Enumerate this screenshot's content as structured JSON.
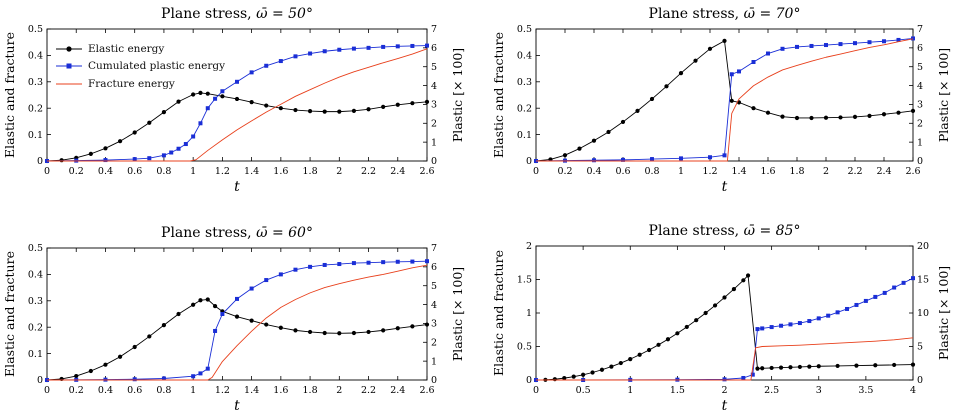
{
  "figure": {
    "background": "#ffffff",
    "colors": {
      "elastic": "#000000",
      "plastic": "#1a2ed6",
      "fracture": "#e8401c"
    }
  },
  "legend": {
    "items": [
      {
        "label": "Elastic energy",
        "series": "elastic"
      },
      {
        "label": "Cumulated plastic energy",
        "series": "plastic"
      },
      {
        "label": "Fracture energy",
        "series": "fracture"
      }
    ]
  },
  "chart_data": [
    {
      "type": "line",
      "title_prefix": "Plane stress, ",
      "title_math": "ω̄ = 50°",
      "xlabel": "t",
      "ylabel": "Elastic and fracture",
      "y2label": "Plastic [× 100]",
      "xlim": [
        0,
        2.6
      ],
      "ylim": [
        0,
        0.5
      ],
      "y2lim": [
        0,
        7
      ],
      "xticks": [
        0,
        0.2,
        0.4,
        0.6,
        0.8,
        1,
        1.2,
        1.4,
        1.6,
        1.8,
        2,
        2.2,
        2.4,
        2.6
      ],
      "yticks": [
        0,
        0.1,
        0.2,
        0.3,
        0.4,
        0.5
      ],
      "y2ticks": [
        0,
        1,
        2,
        3,
        4,
        5,
        6,
        7
      ],
      "legend": "top-left",
      "series": [
        {
          "name": "Elastic energy",
          "key": "elastic",
          "axis": "left",
          "marker": "circle",
          "x": [
            0,
            0.1,
            0.2,
            0.3,
            0.4,
            0.5,
            0.6,
            0.7,
            0.8,
            0.9,
            1.0,
            1.05,
            1.1,
            1.2,
            1.3,
            1.4,
            1.5,
            1.6,
            1.7,
            1.8,
            1.9,
            2.0,
            2.1,
            2.2,
            2.3,
            2.4,
            2.5,
            2.6
          ],
          "y": [
            0,
            0.003,
            0.012,
            0.027,
            0.048,
            0.075,
            0.108,
            0.145,
            0.185,
            0.225,
            0.252,
            0.258,
            0.255,
            0.245,
            0.235,
            0.223,
            0.21,
            0.2,
            0.193,
            0.189,
            0.187,
            0.187,
            0.19,
            0.196,
            0.205,
            0.213,
            0.219,
            0.224
          ]
        },
        {
          "name": "Cumulated plastic energy",
          "key": "plastic",
          "axis": "right",
          "marker": "square",
          "x": [
            0,
            0.2,
            0.4,
            0.6,
            0.7,
            0.8,
            0.85,
            0.9,
            0.95,
            1.0,
            1.05,
            1.1,
            1.15,
            1.2,
            1.3,
            1.4,
            1.5,
            1.6,
            1.7,
            1.8,
            1.9,
            2.0,
            2.1,
            2.2,
            2.3,
            2.4,
            2.5,
            2.6
          ],
          "y": [
            0,
            0.02,
            0.05,
            0.1,
            0.15,
            0.3,
            0.45,
            0.65,
            0.9,
            1.3,
            2.0,
            2.8,
            3.3,
            3.7,
            4.2,
            4.7,
            5.05,
            5.3,
            5.55,
            5.7,
            5.82,
            5.9,
            5.96,
            6.0,
            6.05,
            6.08,
            6.1,
            6.12
          ]
        },
        {
          "name": "Fracture energy",
          "key": "fracture",
          "axis": "left",
          "marker": "none",
          "x": [
            0,
            0.98,
            1.02,
            1.1,
            1.2,
            1.3,
            1.4,
            1.5,
            1.6,
            1.7,
            1.8,
            1.9,
            2.0,
            2.1,
            2.2,
            2.3,
            2.4,
            2.5,
            2.6
          ],
          "y": [
            0,
            0,
            0.005,
            0.04,
            0.08,
            0.118,
            0.152,
            0.185,
            0.215,
            0.245,
            0.27,
            0.295,
            0.318,
            0.338,
            0.355,
            0.372,
            0.388,
            0.405,
            0.425
          ]
        }
      ]
    },
    {
      "type": "line",
      "title_prefix": "Plane stress, ",
      "title_math": "ω̄ = 70°",
      "xlabel": "t",
      "ylabel": "Elastic and fracture",
      "y2label": "Plastic [× 100]",
      "xlim": [
        0,
        2.6
      ],
      "ylim": [
        0,
        0.5
      ],
      "y2lim": [
        0,
        7
      ],
      "xticks": [
        0,
        0.2,
        0.4,
        0.6,
        0.8,
        1,
        1.2,
        1.4,
        1.6,
        1.8,
        2,
        2.2,
        2.4,
        2.6
      ],
      "yticks": [
        0,
        0.1,
        0.2,
        0.3,
        0.4,
        0.5
      ],
      "y2ticks": [
        0,
        1,
        2,
        3,
        4,
        5,
        6,
        7
      ],
      "series": [
        {
          "name": "Elastic energy",
          "key": "elastic",
          "axis": "left",
          "marker": "circle",
          "x": [
            0,
            0.1,
            0.2,
            0.3,
            0.4,
            0.5,
            0.6,
            0.7,
            0.8,
            0.9,
            1.0,
            1.1,
            1.2,
            1.3,
            1.35,
            1.4,
            1.5,
            1.6,
            1.7,
            1.8,
            1.9,
            2.0,
            2.1,
            2.2,
            2.3,
            2.4,
            2.5,
            2.6
          ],
          "y": [
            0,
            0.006,
            0.022,
            0.047,
            0.077,
            0.11,
            0.148,
            0.19,
            0.235,
            0.283,
            0.333,
            0.38,
            0.425,
            0.455,
            0.228,
            0.222,
            0.2,
            0.183,
            0.168,
            0.163,
            0.163,
            0.164,
            0.165,
            0.167,
            0.171,
            0.177,
            0.183,
            0.19
          ]
        },
        {
          "name": "Cumulated plastic energy",
          "key": "plastic",
          "axis": "right",
          "marker": "square",
          "x": [
            0,
            0.2,
            0.4,
            0.6,
            0.8,
            1.0,
            1.2,
            1.3,
            1.35,
            1.4,
            1.5,
            1.6,
            1.7,
            1.8,
            1.9,
            2.0,
            2.1,
            2.2,
            2.3,
            2.4,
            2.5,
            2.6
          ],
          "y": [
            0,
            0.02,
            0.04,
            0.06,
            0.1,
            0.14,
            0.2,
            0.3,
            4.6,
            4.75,
            5.25,
            5.7,
            5.95,
            6.05,
            6.1,
            6.15,
            6.2,
            6.25,
            6.3,
            6.35,
            6.42,
            6.5
          ]
        },
        {
          "name": "Fracture energy",
          "key": "fracture",
          "axis": "left",
          "marker": "none",
          "x": [
            0,
            1.32,
            1.35,
            1.4,
            1.5,
            1.6,
            1.7,
            1.8,
            1.9,
            2.0,
            2.1,
            2.2,
            2.3,
            2.4,
            2.5,
            2.6
          ],
          "y": [
            0,
            0,
            0.18,
            0.235,
            0.285,
            0.318,
            0.345,
            0.362,
            0.378,
            0.393,
            0.405,
            0.418,
            0.43,
            0.44,
            0.452,
            0.463
          ]
        }
      ]
    },
    {
      "type": "line",
      "title_prefix": "Plane stress, ",
      "title_math": "ω̄ = 60°",
      "xlabel": "t",
      "ylabel": "Elastic and fracture",
      "y2label": "Plastic [× 100]",
      "xlim": [
        0,
        2.6
      ],
      "ylim": [
        0,
        0.5
      ],
      "y2lim": [
        0,
        7
      ],
      "xticks": [
        0,
        0.2,
        0.4,
        0.6,
        0.8,
        1,
        1.2,
        1.4,
        1.6,
        1.8,
        2,
        2.2,
        2.4,
        2.6
      ],
      "yticks": [
        0,
        0.1,
        0.2,
        0.3,
        0.4,
        0.5
      ],
      "y2ticks": [
        0,
        1,
        2,
        3,
        4,
        5,
        6,
        7
      ],
      "series": [
        {
          "name": "Elastic energy",
          "key": "elastic",
          "axis": "left",
          "marker": "circle",
          "x": [
            0,
            0.1,
            0.2,
            0.3,
            0.4,
            0.5,
            0.6,
            0.7,
            0.8,
            0.9,
            1.0,
            1.05,
            1.1,
            1.15,
            1.2,
            1.3,
            1.4,
            1.5,
            1.6,
            1.7,
            1.8,
            1.9,
            2.0,
            2.1,
            2.2,
            2.3,
            2.4,
            2.5,
            2.6
          ],
          "y": [
            0,
            0.004,
            0.015,
            0.034,
            0.058,
            0.088,
            0.125,
            0.165,
            0.208,
            0.25,
            0.285,
            0.302,
            0.305,
            0.28,
            0.26,
            0.24,
            0.225,
            0.21,
            0.198,
            0.188,
            0.182,
            0.178,
            0.177,
            0.178,
            0.182,
            0.188,
            0.196,
            0.203,
            0.21
          ]
        },
        {
          "name": "Cumulated plastic energy",
          "key": "plastic",
          "axis": "right",
          "marker": "square",
          "x": [
            0,
            0.2,
            0.4,
            0.6,
            0.8,
            1.0,
            1.05,
            1.1,
            1.15,
            1.2,
            1.3,
            1.4,
            1.5,
            1.6,
            1.7,
            1.8,
            1.9,
            2.0,
            2.1,
            2.2,
            2.3,
            2.4,
            2.5,
            2.6
          ],
          "y": [
            0,
            0.01,
            0.02,
            0.04,
            0.08,
            0.2,
            0.35,
            0.6,
            2.6,
            3.5,
            4.3,
            4.85,
            5.3,
            5.6,
            5.85,
            6.0,
            6.1,
            6.15,
            6.2,
            6.22,
            6.25,
            6.27,
            6.28,
            6.3
          ]
        },
        {
          "name": "Fracture energy",
          "key": "fracture",
          "axis": "left",
          "marker": "none",
          "x": [
            0,
            1.1,
            1.13,
            1.2,
            1.3,
            1.4,
            1.5,
            1.6,
            1.7,
            1.8,
            1.9,
            2.0,
            2.1,
            2.2,
            2.3,
            2.4,
            2.5,
            2.6
          ],
          "y": [
            0,
            0,
            0.01,
            0.07,
            0.13,
            0.185,
            0.235,
            0.275,
            0.305,
            0.33,
            0.35,
            0.365,
            0.378,
            0.39,
            0.4,
            0.412,
            0.425,
            0.435
          ]
        }
      ]
    },
    {
      "type": "line",
      "title_prefix": "Plane stress, ",
      "title_math": "ω̄ = 85°",
      "xlabel": "t",
      "ylabel": "Elastic and fracture",
      "y2label": "Plastic [× 100]",
      "xlim": [
        0,
        4
      ],
      "ylim": [
        0,
        2
      ],
      "y2lim": [
        0,
        20
      ],
      "xticks": [
        0,
        0.5,
        1,
        1.5,
        2,
        2.5,
        3,
        3.5,
        4
      ],
      "yticks": [
        0,
        0.5,
        1,
        1.5,
        2
      ],
      "y2ticks": [
        0,
        5,
        10,
        15,
        20
      ],
      "series": [
        {
          "name": "Elastic energy",
          "key": "elastic",
          "axis": "left",
          "marker": "circle",
          "x": [
            0,
            0.1,
            0.2,
            0.3,
            0.4,
            0.5,
            0.6,
            0.7,
            0.8,
            0.9,
            1.0,
            1.1,
            1.2,
            1.3,
            1.4,
            1.5,
            1.6,
            1.7,
            1.8,
            1.9,
            2.0,
            2.1,
            2.2,
            2.25,
            2.35,
            2.4,
            2.5,
            2.6,
            2.7,
            2.8,
            2.9,
            3.0,
            3.2,
            3.4,
            3.6,
            3.8,
            4.0
          ],
          "y": [
            0,
            0.003,
            0.012,
            0.028,
            0.05,
            0.078,
            0.112,
            0.153,
            0.2,
            0.253,
            0.312,
            0.377,
            0.448,
            0.525,
            0.608,
            0.697,
            0.792,
            0.893,
            1.0,
            1.113,
            1.232,
            1.357,
            1.488,
            1.56,
            0.17,
            0.175,
            0.18,
            0.185,
            0.19,
            0.195,
            0.2,
            0.205,
            0.21,
            0.215,
            0.22,
            0.225,
            0.23
          ]
        },
        {
          "name": "Cumulated plastic energy",
          "key": "plastic",
          "axis": "right",
          "marker": "square",
          "x": [
            0,
            0.5,
            1.0,
            1.5,
            2.0,
            2.2,
            2.3,
            2.35,
            2.4,
            2.5,
            2.6,
            2.7,
            2.8,
            2.9,
            3.0,
            3.1,
            3.2,
            3.3,
            3.4,
            3.5,
            3.6,
            3.7,
            3.8,
            3.9,
            4.0
          ],
          "y": [
            0,
            0,
            0.02,
            0.05,
            0.1,
            0.3,
            0.8,
            7.6,
            7.7,
            7.9,
            8.1,
            8.3,
            8.5,
            8.8,
            9.2,
            9.6,
            10.1,
            10.6,
            11.2,
            11.8,
            12.4,
            13.0,
            13.8,
            14.5,
            15.2
          ]
        },
        {
          "name": "Fracture energy",
          "key": "fracture",
          "axis": "left",
          "marker": "none",
          "x": [
            0,
            2.28,
            2.33,
            2.4,
            2.6,
            2.8,
            3.0,
            3.2,
            3.4,
            3.6,
            3.8,
            4.0
          ],
          "y": [
            0,
            0,
            0.48,
            0.5,
            0.51,
            0.52,
            0.535,
            0.55,
            0.565,
            0.58,
            0.6,
            0.63
          ]
        }
      ]
    }
  ]
}
